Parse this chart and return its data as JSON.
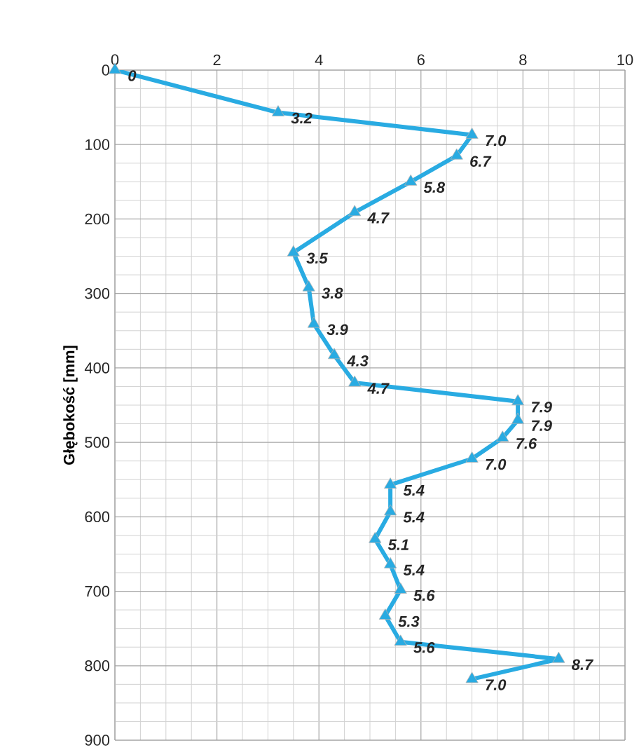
{
  "chart_data": {
    "type": "line",
    "orientation": "horizontal",
    "ylabel": "Głębokość [mm]",
    "x": [
      0,
      57,
      87,
      115,
      150,
      191,
      245,
      292,
      341,
      383,
      420,
      445,
      470,
      494,
      522,
      557,
      593,
      630,
      664,
      698,
      733,
      768,
      791,
      818
    ],
    "series": [
      {
        "color": "#29abe2",
        "values": [
          0,
          3.2,
          7.0,
          6.7,
          5.8,
          4.7,
          3.5,
          3.8,
          3.9,
          4.3,
          4.7,
          7.9,
          7.9,
          7.6,
          7.0,
          5.4,
          5.4,
          5.1,
          5.4,
          5.6,
          5.3,
          5.6,
          8.7,
          7.0
        ],
        "value_labels": [
          "0",
          "3.2",
          "7.0",
          "6.7",
          "5.8",
          "4.7",
          "3.5",
          "3.8",
          "3.9",
          "4.3",
          "4.7",
          "7.9",
          "7.9",
          "7.6",
          "7.0",
          "5.4",
          "5.4",
          "5.1",
          "5.4",
          "5.6",
          "5.3",
          "5.6",
          "8.7",
          "7.0"
        ]
      }
    ],
    "xlim": [
      0,
      10
    ],
    "xticks": [
      0,
      2,
      4,
      6,
      8,
      10
    ],
    "ylim": [
      900,
      0
    ],
    "yticks": [
      0,
      100,
      200,
      300,
      400,
      500,
      600,
      700,
      800,
      900
    ],
    "grid": true,
    "marker": "triangle",
    "line_style": "solid"
  }
}
